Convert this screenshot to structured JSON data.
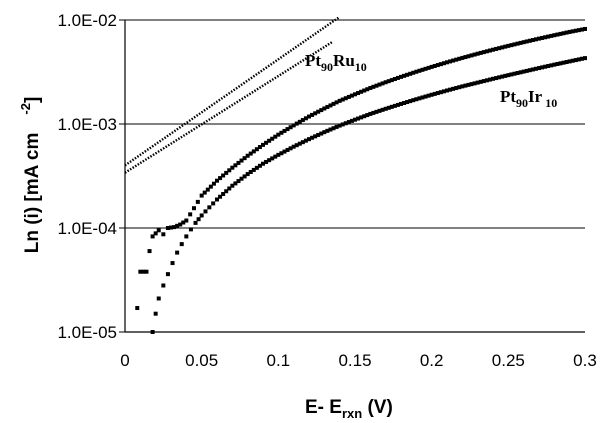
{
  "chart_data": {
    "type": "scatter",
    "title": "",
    "xlabel": {
      "base": "E- E",
      "sub": "rxn",
      "tail": " (V)"
    },
    "ylabel": {
      "main": "Ln (i) [mA cm",
      "sup": "-2",
      "tail": "]"
    },
    "xlim": [
      0,
      0.3
    ],
    "ylim": [
      1e-05,
      0.01
    ],
    "yscale": "log",
    "x_ticks": [
      "0",
      "0.05",
      "0.1",
      "0.15",
      "0.2",
      "0.25",
      "0.3"
    ],
    "y_ticks": [
      "1.0E-05",
      "1.0E-04",
      "1.0E-03",
      "1.0E-02"
    ],
    "grid": {
      "horizontal": true,
      "vertical": false
    },
    "series": [
      {
        "name": {
          "base": "Pt",
          "sub1": "90",
          "mid": "Ru",
          "sub2": "10"
        },
        "points": [
          [
            0.008,
            1.7e-05
          ],
          [
            0.01,
            3.8e-05
          ],
          [
            0.014,
            3.8e-05
          ],
          [
            0.016,
            6e-05
          ],
          [
            0.018,
            8.3e-05
          ],
          [
            0.022,
            9.5e-05
          ],
          [
            0.025,
            8.7e-05
          ],
          [
            0.028,
            0.0001
          ],
          [
            0.032,
            0.000102
          ],
          [
            0.036,
            0.000108
          ],
          [
            0.04,
            0.000118
          ],
          [
            0.045,
            0.000155
          ],
          [
            0.05,
            0.000205
          ],
          [
            0.06,
            0.000285
          ],
          [
            0.07,
            0.00038
          ],
          [
            0.08,
            0.000495
          ],
          [
            0.09,
            0.00063
          ],
          [
            0.1,
            0.00079
          ],
          [
            0.11,
            0.00097
          ],
          [
            0.12,
            0.00118
          ],
          [
            0.13,
            0.00141
          ],
          [
            0.14,
            0.00167
          ],
          [
            0.15,
            0.00193
          ],
          [
            0.16,
            0.00222
          ],
          [
            0.17,
            0.00252
          ],
          [
            0.18,
            0.00284
          ],
          [
            0.19,
            0.00318
          ],
          [
            0.2,
            0.00354
          ],
          [
            0.21,
            0.00392
          ],
          [
            0.22,
            0.00432
          ],
          [
            0.23,
            0.00474
          ],
          [
            0.24,
            0.00518
          ],
          [
            0.25,
            0.00564
          ],
          [
            0.26,
            0.00612
          ],
          [
            0.27,
            0.00662
          ],
          [
            0.28,
            0.00714
          ],
          [
            0.29,
            0.00768
          ],
          [
            0.3,
            0.0082
          ]
        ],
        "tafel_fit": {
          "intercept": 0.0004,
          "slope_decades_per_volt": 10.2,
          "x_end": 0.14
        }
      },
      {
        "name": {
          "base": "Pt",
          "sub1": "90",
          "mid": "Ir",
          "sub2": " 10"
        },
        "points": [
          [
            0.018,
            1e-05
          ],
          [
            0.02,
            1.5e-05
          ],
          [
            0.022,
            2.1e-05
          ],
          [
            0.025,
            2.8e-05
          ],
          [
            0.028,
            3.6e-05
          ],
          [
            0.031,
            4.6e-05
          ],
          [
            0.034,
            5.8e-05
          ],
          [
            0.037,
            7e-05
          ],
          [
            0.04,
            8.3e-05
          ],
          [
            0.043,
            9.7e-05
          ],
          [
            0.046,
            0.000112
          ],
          [
            0.05,
            0.000132
          ],
          [
            0.055,
            0.000158
          ],
          [
            0.06,
            0.000188
          ],
          [
            0.07,
            0.000255
          ],
          [
            0.08,
            0.00033
          ],
          [
            0.09,
            0.000415
          ],
          [
            0.1,
            0.000505
          ],
          [
            0.11,
            0.000605
          ],
          [
            0.12,
            0.000715
          ],
          [
            0.13,
            0.000835
          ],
          [
            0.14,
            0.000965
          ],
          [
            0.15,
            0.0011
          ],
          [
            0.16,
            0.00125
          ],
          [
            0.17,
            0.0014
          ],
          [
            0.18,
            0.00156
          ],
          [
            0.19,
            0.00173
          ],
          [
            0.2,
            0.00191
          ],
          [
            0.21,
            0.0021
          ],
          [
            0.22,
            0.0023
          ],
          [
            0.23,
            0.0025
          ],
          [
            0.24,
            0.00272
          ],
          [
            0.25,
            0.00295
          ],
          [
            0.26,
            0.00319
          ],
          [
            0.27,
            0.00345
          ],
          [
            0.28,
            0.00372
          ],
          [
            0.29,
            0.004
          ],
          [
            0.3,
            0.0043
          ]
        ],
        "tafel_fit": {
          "intercept": 0.00034,
          "slope_decades_per_volt": 9.3,
          "x_end": 0.135
        }
      }
    ]
  }
}
